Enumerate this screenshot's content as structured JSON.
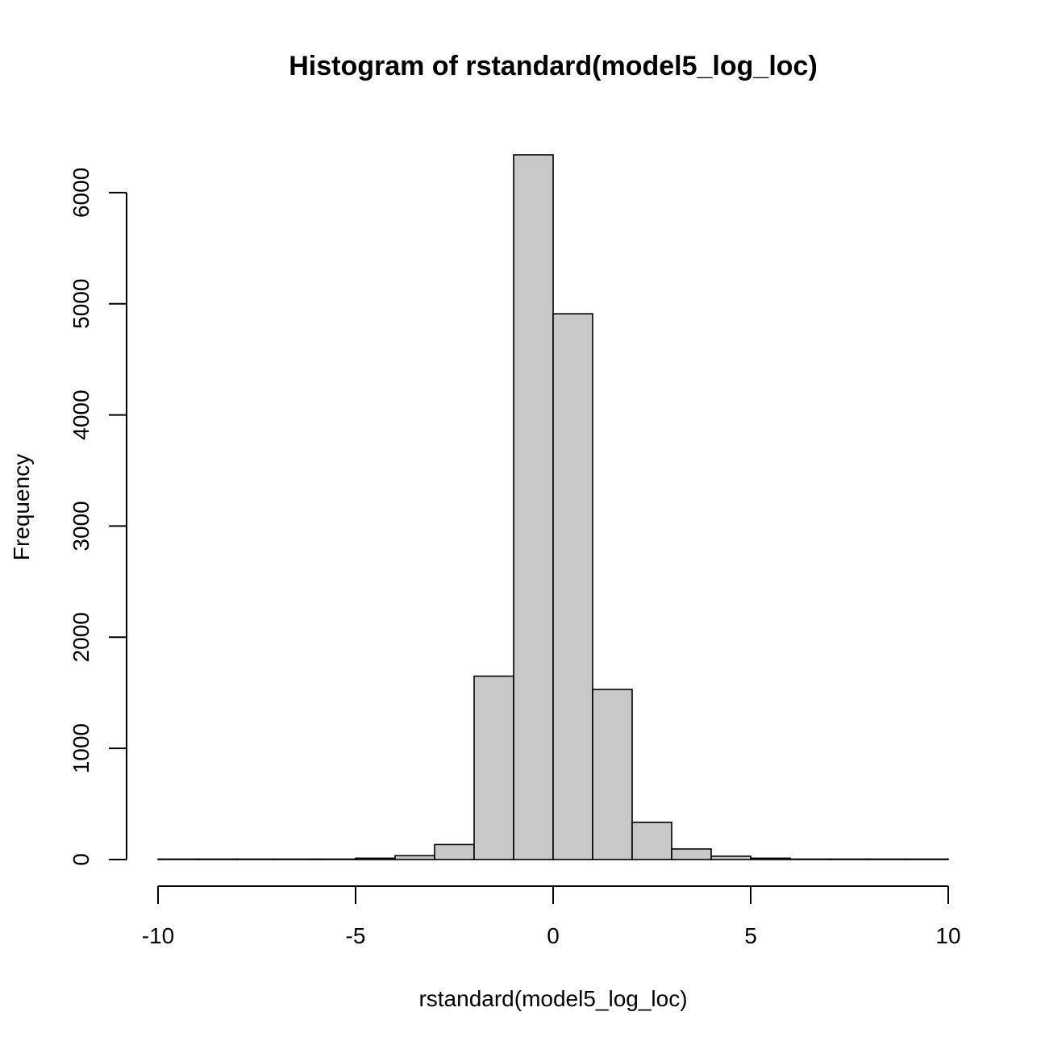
{
  "chart_data": {
    "type": "bar",
    "title": "Histogram of rstandard(model5_log_loc)",
    "xlabel": "rstandard(model5_log_loc)",
    "ylabel": "Frequency",
    "xlim": [
      -10,
      10
    ],
    "ylim": [
      0,
      6340
    ],
    "xticks": [
      -10,
      -5,
      0,
      5,
      10
    ],
    "yticks": [
      0,
      1000,
      2000,
      3000,
      4000,
      5000,
      6000
    ],
    "bins": [
      {
        "x0": -10,
        "x1": -9,
        "value": 1
      },
      {
        "x0": -9,
        "x1": -8,
        "value": 1
      },
      {
        "x0": -8,
        "x1": -7,
        "value": 0
      },
      {
        "x0": -7,
        "x1": -6,
        "value": 1
      },
      {
        "x0": -6,
        "x1": -5,
        "value": 3
      },
      {
        "x0": -5,
        "x1": -4,
        "value": 12
      },
      {
        "x0": -4,
        "x1": -3,
        "value": 35
      },
      {
        "x0": -3,
        "x1": -2,
        "value": 135
      },
      {
        "x0": -2,
        "x1": -1,
        "value": 1650
      },
      {
        "x0": -1,
        "x1": 0,
        "value": 6340
      },
      {
        "x0": 0,
        "x1": 1,
        "value": 4910
      },
      {
        "x0": 1,
        "x1": 2,
        "value": 1530
      },
      {
        "x0": 2,
        "x1": 3,
        "value": 335
      },
      {
        "x0": 3,
        "x1": 4,
        "value": 95
      },
      {
        "x0": 4,
        "x1": 5,
        "value": 30
      },
      {
        "x0": 5,
        "x1": 6,
        "value": 12
      },
      {
        "x0": 6,
        "x1": 7,
        "value": 4
      },
      {
        "x0": 7,
        "x1": 8,
        "value": 2
      },
      {
        "x0": 8,
        "x1": 9,
        "value": 1
      },
      {
        "x0": 9,
        "x1": 10,
        "value": 1
      }
    ],
    "bar_color": "#c8c8c8",
    "grid": false,
    "legend": "none"
  }
}
